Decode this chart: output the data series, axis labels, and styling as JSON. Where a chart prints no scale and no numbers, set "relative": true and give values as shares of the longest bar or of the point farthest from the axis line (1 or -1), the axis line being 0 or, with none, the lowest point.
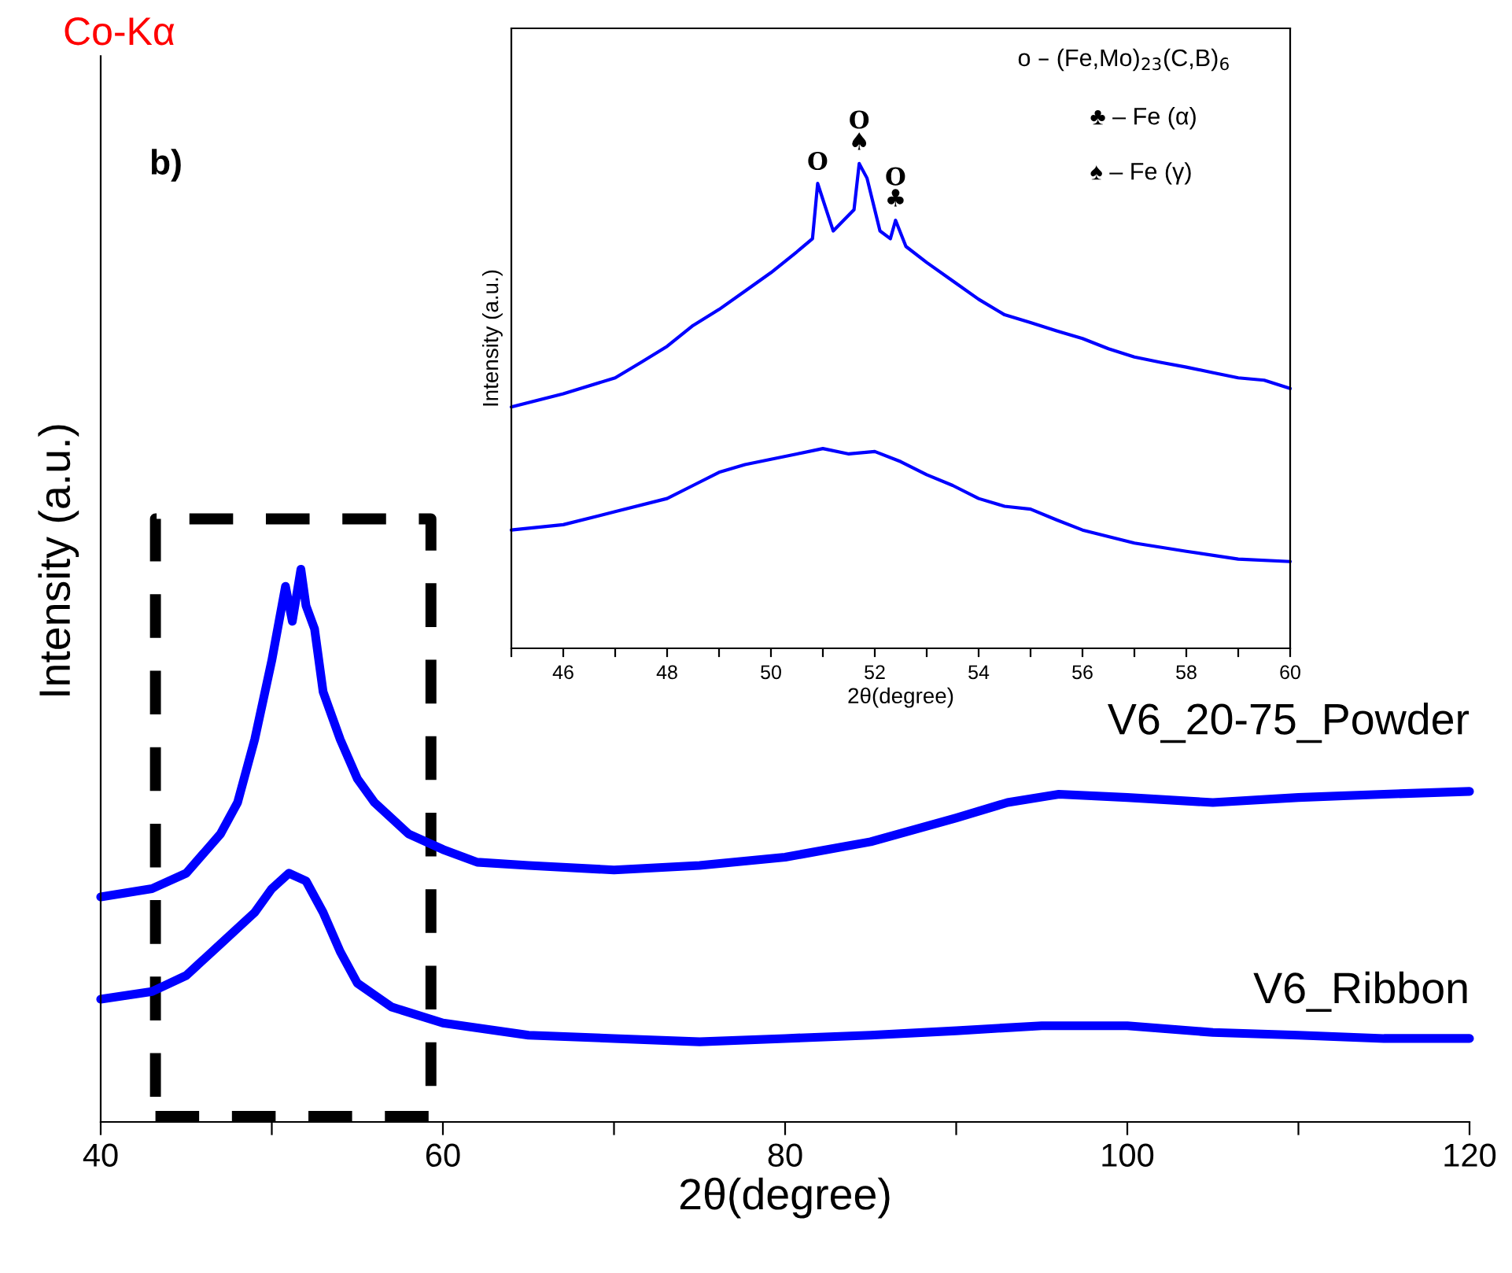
{
  "chart_data": [
    {
      "type": "line",
      "relative": true,
      "xlabel": "2θ(degree)",
      "ylabel": "Intensity (a.u.)",
      "xlim": [
        40,
        120
      ],
      "xticks": [
        40,
        {
          "value": 50,
          "label": null
        },
        60,
        {
          "value": 70,
          "label": null
        },
        80,
        {
          "value": 90,
          "label": null
        },
        100,
        {
          "value": 110,
          "label": null
        },
        120
      ],
      "annotations": [
        "Co-Kα",
        "b)"
      ],
      "series": [
        {
          "name": "V6_20-75_Powder",
          "color": "#0000ff",
          "x": [
            40,
            43,
            45,
            47,
            48,
            49,
            50,
            50.8,
            51.2,
            51.7,
            52,
            52.5,
            53,
            54,
            55,
            56,
            58,
            60,
            62,
            65,
            70,
            75,
            80,
            85,
            90,
            93,
            96,
            100,
            105,
            110,
            115,
            120
          ],
          "values": [
            0.407,
            0.422,
            0.45,
            0.521,
            0.578,
            0.692,
            0.835,
            0.969,
            0.906,
            1.0,
            0.934,
            0.892,
            0.778,
            0.692,
            0.621,
            0.578,
            0.521,
            0.493,
            0.47,
            0.464,
            0.456,
            0.464,
            0.479,
            0.507,
            0.55,
            0.578,
            0.593,
            0.587,
            0.578,
            0.587,
            0.593,
            0.598
          ]
        },
        {
          "name": "V6_Ribbon",
          "color": "#0000ff",
          "x": [
            40,
            43,
            45,
            47,
            49,
            50,
            51,
            52,
            53,
            54,
            55,
            57,
            60,
            65,
            70,
            75,
            80,
            85,
            90,
            95,
            100,
            105,
            110,
            115,
            120
          ],
          "values": [
            0.222,
            0.236,
            0.265,
            0.322,
            0.379,
            0.422,
            0.45,
            0.436,
            0.379,
            0.308,
            0.251,
            0.208,
            0.179,
            0.157,
            0.151,
            0.145,
            0.151,
            0.157,
            0.165,
            0.174,
            0.174,
            0.162,
            0.157,
            0.151,
            0.151
          ]
        }
      ]
    },
    {
      "type": "line",
      "relative": true,
      "xlabel": "2θ(degree)",
      "ylabel": "Intensity (a.u.)",
      "xlim": [
        45,
        60
      ],
      "xticks": [
        {
          "value": 45,
          "label": null
        },
        46,
        {
          "value": 47,
          "label": null
        },
        48,
        {
          "value": 49,
          "label": null
        },
        50,
        {
          "value": 51,
          "label": null
        },
        52,
        {
          "value": 53,
          "label": null
        },
        54,
        {
          "value": 55,
          "label": null
        },
        56,
        {
          "value": 57,
          "label": null
        },
        58,
        {
          "value": 59,
          "label": null
        },
        60
      ],
      "annotations": [
        "o – (Fe,Mo)$_{23}$(C,B)$_{6}$",
        "♣ – Fe (α)",
        "♠ – Fe (γ)",
        {
          "text": "O",
          "x": 50.9,
          "y": 0.959
        },
        {
          "text": "O\n♠",
          "x": 51.7,
          "y": 1.0
        },
        {
          "text": "O\n♣",
          "x": 52.4,
          "y": 0.883
        }
      ],
      "series": [
        {
          "color": "#0000ff",
          "x": [
            45,
            46,
            47,
            47.5,
            48,
            48.5,
            49,
            49.5,
            50,
            50.5,
            50.8,
            50.9,
            51.0,
            51.2,
            51.4,
            51.6,
            51.7,
            51.85,
            52.1,
            52.3,
            52.4,
            52.6,
            53,
            53.5,
            54,
            54.5,
            55,
            55.5,
            56,
            56.5,
            57,
            57.5,
            58,
            58.5,
            59,
            59.5,
            60
          ],
          "values": [
            0.498,
            0.525,
            0.558,
            0.59,
            0.623,
            0.666,
            0.699,
            0.737,
            0.775,
            0.818,
            0.845,
            0.959,
            0.926,
            0.861,
            0.883,
            0.905,
            1.0,
            0.97,
            0.861,
            0.845,
            0.883,
            0.829,
            0.796,
            0.758,
            0.72,
            0.688,
            0.672,
            0.655,
            0.639,
            0.618,
            0.601,
            0.59,
            0.58,
            0.569,
            0.558,
            0.553,
            0.536
          ]
        },
        {
          "color": "#0000ff",
          "x": [
            45,
            46,
            47,
            48,
            48.5,
            49,
            49.5,
            50,
            50.5,
            51,
            51.5,
            52,
            52.5,
            53,
            53.5,
            54,
            54.5,
            55,
            55.5,
            56,
            57,
            58,
            59,
            60
          ],
          "values": [
            0.244,
            0.255,
            0.282,
            0.309,
            0.336,
            0.363,
            0.379,
            0.39,
            0.401,
            0.412,
            0.401,
            0.406,
            0.385,
            0.358,
            0.336,
            0.309,
            0.293,
            0.287,
            0.265,
            0.244,
            0.217,
            0.2,
            0.184,
            0.179
          ]
        }
      ]
    }
  ]
}
